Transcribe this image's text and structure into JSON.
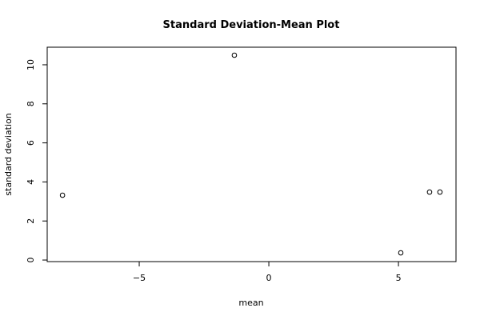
{
  "chart_data": {
    "type": "scatter",
    "title": "Standard Deviation-Mean Plot",
    "x_label": "mean",
    "y_label": "standard deviation",
    "x": [
      -7.96,
      -1.33,
      5.09,
      6.2,
      6.6
    ],
    "values": [
      3.32,
      10.49,
      0.37,
      3.48,
      3.48
    ],
    "color": "#000000",
    "xlim": [
      -8.55,
      7.22
    ],
    "ylim": [
      -0.08,
      10.9
    ],
    "xticks": [
      {
        "value": -5,
        "label": "−5"
      },
      0,
      5
    ],
    "yticks": [
      0,
      2,
      4,
      6,
      8,
      10
    ],
    "grid": false
  }
}
